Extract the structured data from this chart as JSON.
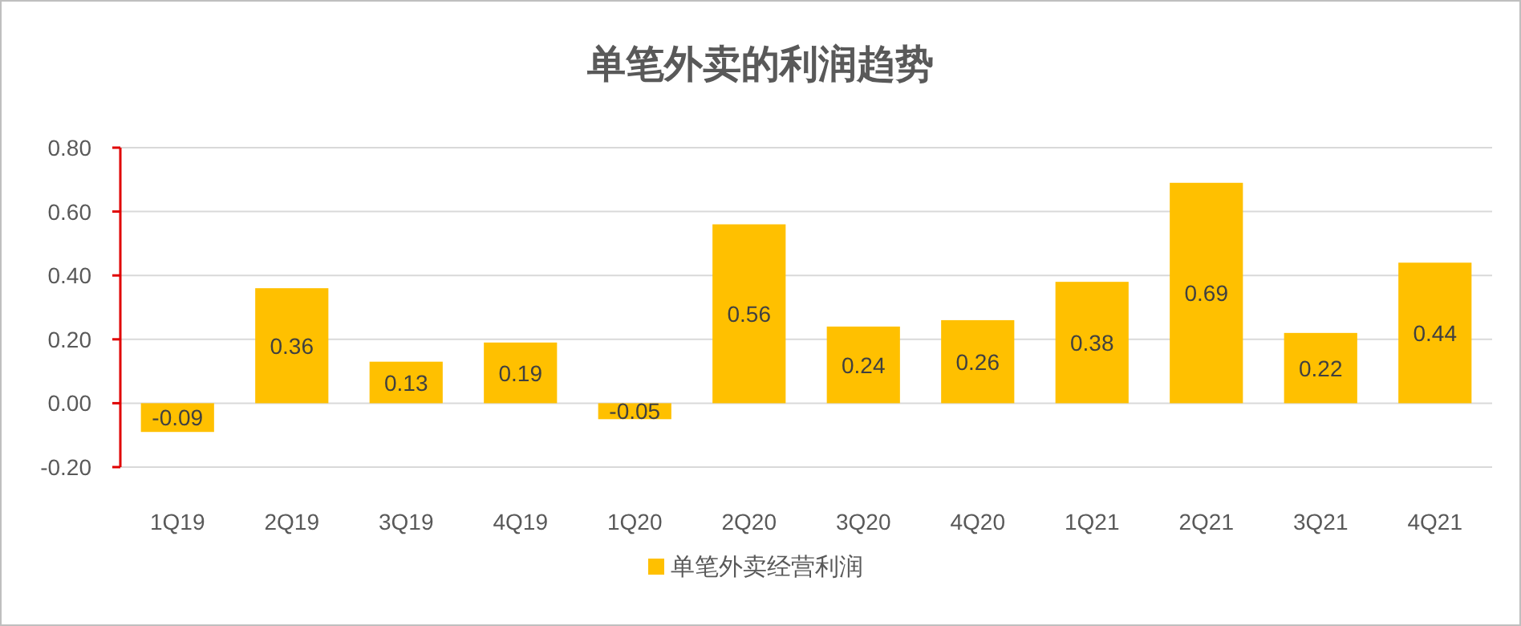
{
  "chart_data": {
    "type": "bar",
    "title": "单笔外卖的利润趋势",
    "categories": [
      "1Q19",
      "2Q19",
      "3Q19",
      "4Q19",
      "1Q20",
      "2Q20",
      "3Q20",
      "4Q20",
      "1Q21",
      "2Q21",
      "3Q21",
      "4Q21"
    ],
    "series": [
      {
        "name": "单笔外卖经营利润",
        "color": "#ffc000",
        "values": [
          -0.09,
          0.36,
          0.13,
          0.19,
          -0.05,
          0.56,
          0.24,
          0.26,
          0.38,
          0.69,
          0.22,
          0.44
        ]
      }
    ],
    "ylim": [
      -0.2,
      0.8
    ],
    "yticks": [
      {
        "value": -0.2,
        "label": "-0.20"
      },
      {
        "value": 0,
        "label": "0.00"
      },
      {
        "value": 0.2,
        "label": "0.20"
      },
      {
        "value": 0.4,
        "label": "0.40"
      },
      {
        "value": 0.6,
        "label": "0.60"
      },
      {
        "value": 0.8,
        "label": "0.80"
      }
    ],
    "grid": "y",
    "legend": "bottom",
    "data_labels": true
  }
}
